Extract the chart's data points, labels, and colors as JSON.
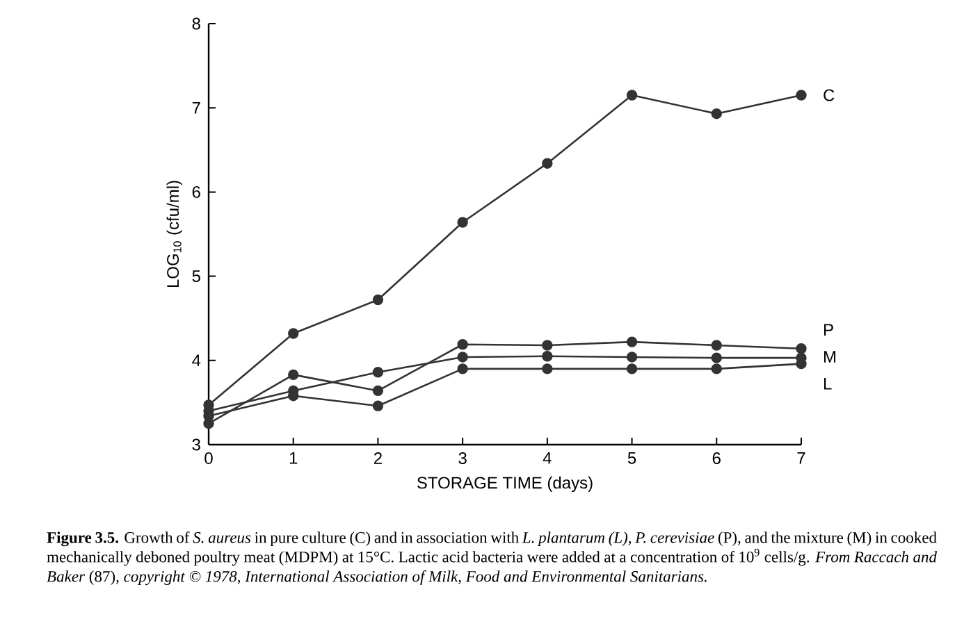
{
  "chart_data": {
    "type": "line",
    "xlabel": "STORAGE TIME (days)",
    "ylabel": "LOG$_{10}$ (cfu/ml)",
    "x": [
      0,
      1,
      2,
      3,
      4,
      5,
      6,
      7
    ],
    "series": [
      {
        "name": "C",
        "color": "#333333",
        "values": [
          3.47,
          4.32,
          4.72,
          5.64,
          6.34,
          7.15,
          6.93,
          7.15
        ]
      },
      {
        "name": "P",
        "color": "#333333",
        "values": [
          3.25,
          3.83,
          3.64,
          4.19,
          4.18,
          4.22,
          4.18,
          4.14
        ]
      },
      {
        "name": "M",
        "color": "#333333",
        "values": [
          3.4,
          3.64,
          3.86,
          4.04,
          4.05,
          4.04,
          4.03,
          4.03
        ]
      },
      {
        "name": "L",
        "color": "#333333",
        "values": [
          3.34,
          3.58,
          3.46,
          3.9,
          3.9,
          3.9,
          3.9,
          3.96
        ]
      }
    ],
    "xlim": [
      0,
      7
    ],
    "ylim": [
      3,
      8
    ],
    "xticks": [
      0,
      1,
      2,
      3,
      4,
      5,
      6,
      7
    ],
    "yticks": [
      3,
      4,
      5,
      6,
      7,
      8
    ],
    "marker": "circle",
    "line_style": "solid",
    "grid": false,
    "annotations": [
      "**Figure 3.5.** Growth of *S. aureus* in pure culture (C) and in association with *L. plantarum (L), P. cerevisiae* (P), and the mixture (M) in cooked mechanically deboned poultry meat (MDPM) at 15°C. Lactic acid bacteria were added at a concentration of 10$^{9}$ cells/g. *From Raccach and Baker* (87), *copyright © 1978, International Association of Milk, Food and Environmental Sanitarians.*"
    ]
  }
}
